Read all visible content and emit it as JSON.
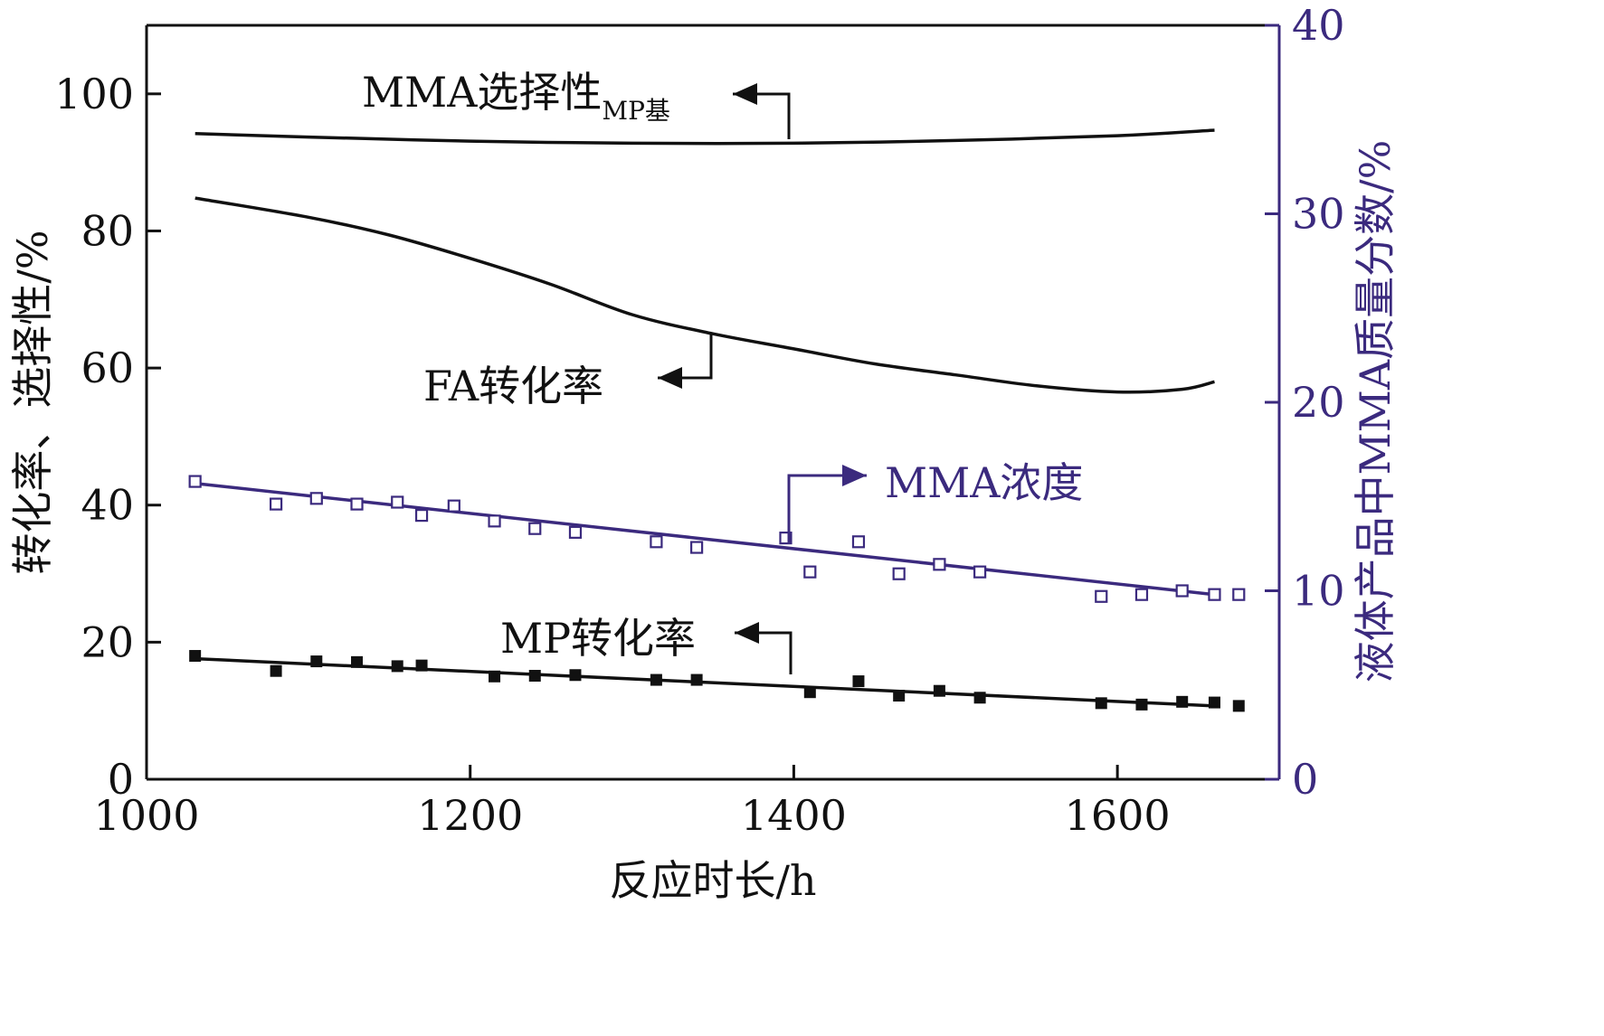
{
  "chart_data": {
    "type": "line",
    "xlabel": "反应时长/h",
    "ylabel": "转化率、选择性/%",
    "y2label": "液体产品中MMA质量分数/%",
    "xlim": [
      1000,
      1700
    ],
    "ylim": [
      0,
      110
    ],
    "y2lim": [
      0,
      40
    ],
    "xticks": [
      "1000",
      "1200",
      "1400",
      "1600"
    ],
    "yticks": [
      "0",
      "20",
      "40",
      "60",
      "80",
      "100"
    ],
    "y2ticks": [
      "0",
      "10",
      "20",
      "30",
      "40"
    ],
    "colors": {
      "black": "#111111",
      "purple": "#3b2a7e"
    },
    "series": [
      {
        "name": "MMA选择性MP基",
        "axis": "left",
        "kind": "line",
        "x": [
          1030,
          1100,
          1200,
          1300,
          1400,
          1500,
          1600,
          1660
        ],
        "y": [
          94.2,
          93.7,
          93.1,
          92.8,
          92.8,
          93.2,
          93.9,
          94.7
        ]
      },
      {
        "name": "FA转化率",
        "axis": "left",
        "kind": "line",
        "x": [
          1030,
          1100,
          1150,
          1200,
          1250,
          1300,
          1350,
          1400,
          1450,
          1500,
          1550,
          1600,
          1640,
          1660
        ],
        "y": [
          84.8,
          82.0,
          79.4,
          76.0,
          72.2,
          67.8,
          65.0,
          62.8,
          60.6,
          59.0,
          57.4,
          56.5,
          56.9,
          58.0
        ]
      },
      {
        "name": "MMA浓度 拟合",
        "axis": "right",
        "kind": "line",
        "x": [
          1030,
          1660
        ],
        "y": [
          15.7,
          9.8
        ]
      },
      {
        "name": "MMA浓度",
        "axis": "right",
        "kind": "scatter-open",
        "x": [
          1030,
          1080,
          1105,
          1130,
          1155,
          1170,
          1190,
          1215,
          1240,
          1265,
          1315,
          1340,
          1395,
          1410,
          1440,
          1465,
          1490,
          1515,
          1590,
          1615,
          1640,
          1660,
          1675
        ],
        "y": [
          15.8,
          14.6,
          14.9,
          14.6,
          14.7,
          14.0,
          14.5,
          13.7,
          13.3,
          13.1,
          12.6,
          12.3,
          12.8,
          11.0,
          12.6,
          10.9,
          11.4,
          11.0,
          9.7,
          9.8,
          10.0,
          9.8,
          9.8
        ]
      },
      {
        "name": "MP转化率 拟合",
        "axis": "left",
        "kind": "line",
        "x": [
          1030,
          1660
        ],
        "y": [
          17.6,
          10.7
        ]
      },
      {
        "name": "MP转化率",
        "axis": "left",
        "kind": "scatter-filled",
        "x": [
          1030,
          1080,
          1105,
          1130,
          1155,
          1170,
          1215,
          1240,
          1265,
          1315,
          1340,
          1410,
          1440,
          1465,
          1490,
          1515,
          1590,
          1615,
          1640,
          1660,
          1675
        ],
        "y": [
          18.0,
          15.8,
          17.2,
          17.1,
          16.5,
          16.6,
          15.0,
          15.1,
          15.2,
          14.5,
          14.5,
          12.7,
          14.3,
          12.2,
          12.9,
          11.9,
          11.1,
          10.9,
          11.3,
          11.2,
          10.7
        ]
      }
    ],
    "annotations": [
      {
        "text": "MMA选择性",
        "subscript": "MP基",
        "target": "MMA选择性MP基"
      },
      {
        "text": "FA转化率",
        "target": "FA转化率"
      },
      {
        "text": "MMA浓度",
        "target": "MMA浓度"
      },
      {
        "text": "MP转化率",
        "target": "MP转化率"
      }
    ]
  }
}
